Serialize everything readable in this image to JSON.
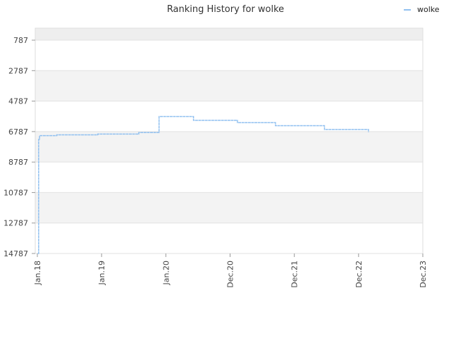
{
  "chart_data": {
    "type": "line",
    "title": "Ranking History for wolke",
    "xlabel": "",
    "ylabel": "",
    "x_tick_labels": [
      "Jan.18",
      "Jan.19",
      "Jan.20",
      "Dec.20",
      "Dec.21",
      "Dec.22",
      "Dec.23"
    ],
    "y_tick_labels": [
      "787",
      "2787",
      "4787",
      "6787",
      "8787",
      "10787",
      "12787",
      "14787"
    ],
    "ylim": [
      14787,
      0
    ],
    "y_inverted": true,
    "grid": true,
    "legend_position": "top-right",
    "series": [
      {
        "name": "wolke",
        "color": "#90c0f0",
        "points": [
          {
            "x": "2018-01-15",
            "y": 14787
          },
          {
            "x": "2018-01-20",
            "y": 7300
          },
          {
            "x": "2018-01-25",
            "y": 7050
          },
          {
            "x": "2018-05-01",
            "y": 7000
          },
          {
            "x": "2018-12-15",
            "y": 6950
          },
          {
            "x": "2019-08-01",
            "y": 6850
          },
          {
            "x": "2019-11-20",
            "y": 6850
          },
          {
            "x": "2019-11-22",
            "y": 5800
          },
          {
            "x": "2020-06-01",
            "y": 6050
          },
          {
            "x": "2021-02-01",
            "y": 6200
          },
          {
            "x": "2021-09-01",
            "y": 6400
          },
          {
            "x": "2022-06-01",
            "y": 6650
          },
          {
            "x": "2023-02-01",
            "y": 6830
          }
        ]
      }
    ]
  }
}
